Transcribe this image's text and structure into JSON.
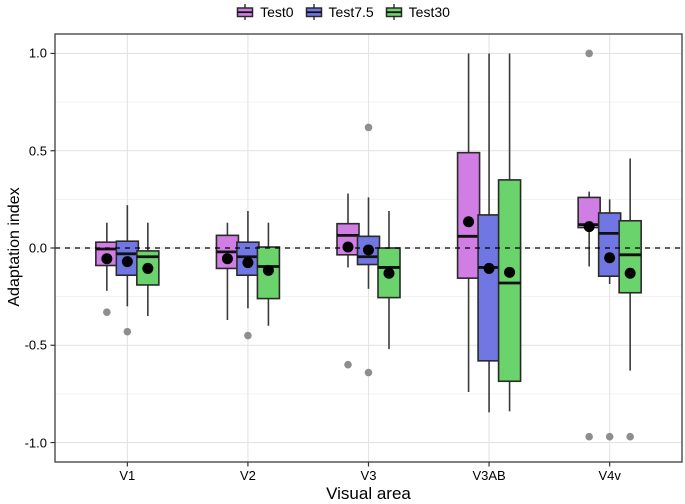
{
  "legend": {
    "entries": [
      "Test0",
      "Test7.5",
      "Test30"
    ]
  },
  "chart_data": {
    "type": "boxplot",
    "title": "",
    "xlabel": "Visual area",
    "ylabel": "Adaptation index",
    "categories": [
      "V1",
      "V2",
      "V3",
      "V3AB",
      "V4v"
    ],
    "y_ticks": [
      1.0,
      0.5,
      0.0,
      -0.5,
      -1.0
    ],
    "y_tick_labels": [
      "1.0",
      "0.5",
      "0.0",
      "-0.5",
      "-1.0"
    ],
    "y_minor_ticks": [
      0.75,
      0.25,
      -0.25,
      -0.75
    ],
    "ylim": [
      -1.1,
      1.1
    ],
    "reference_line": 0.0,
    "legend_position": "top-center",
    "grid": true,
    "colors": {
      "mean_point": "#000000",
      "outlier_point": "#8e8e8e",
      "box_stroke": "#2a2a2a",
      "whisker_stroke": "#3a3a3a",
      "grid_major": "#e4e4e4",
      "grid_minor": "#f0f0f0",
      "panel_border": "#3c3c3c",
      "reference_line": "#000000"
    },
    "series": [
      {
        "name": "Test0",
        "color": "#d07ee3",
        "boxes": [
          {
            "category": "V1",
            "whisker_low": -0.22,
            "q1": -0.09,
            "median": -0.005,
            "q3": 0.03,
            "whisker_high": 0.13,
            "mean": -0.055,
            "outliers": [
              -0.33
            ]
          },
          {
            "category": "V2",
            "whisker_low": -0.37,
            "q1": -0.105,
            "median": -0.02,
            "q3": 0.065,
            "whisker_high": 0.13,
            "mean": -0.055,
            "outliers": []
          },
          {
            "category": "V3",
            "whisker_low": -0.1,
            "q1": -0.035,
            "median": 0.065,
            "q3": 0.125,
            "whisker_high": 0.28,
            "mean": 0.005,
            "outliers": [
              -0.6
            ]
          },
          {
            "category": "V3AB",
            "whisker_low": -0.74,
            "q1": -0.155,
            "median": 0.06,
            "q3": 0.49,
            "whisker_high": 1.0,
            "mean": 0.135,
            "outliers": []
          },
          {
            "category": "V4v",
            "whisker_low": -0.095,
            "q1": 0.105,
            "median": 0.12,
            "q3": 0.26,
            "whisker_high": 0.29,
            "mean": 0.11,
            "outliers": [
              1.0,
              -0.97
            ]
          }
        ]
      },
      {
        "name": "Test7.5",
        "color": "#7077e3",
        "boxes": [
          {
            "category": "V1",
            "whisker_low": -0.3,
            "q1": -0.14,
            "median": -0.03,
            "q3": 0.035,
            "whisker_high": 0.22,
            "mean": -0.07,
            "outliers": [
              -0.43
            ]
          },
          {
            "category": "V2",
            "whisker_low": -0.31,
            "q1": -0.14,
            "median": -0.045,
            "q3": 0.03,
            "whisker_high": 0.19,
            "mean": -0.075,
            "outliers": [
              -0.45
            ]
          },
          {
            "category": "V3",
            "whisker_low": -0.21,
            "q1": -0.085,
            "median": -0.045,
            "q3": 0.06,
            "whisker_high": 0.26,
            "mean": -0.01,
            "outliers": [
              0.62,
              -0.64
            ]
          },
          {
            "category": "V3AB",
            "whisker_low": -0.845,
            "q1": -0.58,
            "median": -0.1,
            "q3": 0.17,
            "whisker_high": 1.0,
            "mean": -0.105,
            "outliers": []
          },
          {
            "category": "V4v",
            "whisker_low": -0.185,
            "q1": -0.145,
            "median": 0.075,
            "q3": 0.18,
            "whisker_high": 0.25,
            "mean": -0.05,
            "outliers": [
              -0.97
            ]
          }
        ]
      },
      {
        "name": "Test30",
        "color": "#6bd36b",
        "boxes": [
          {
            "category": "V1",
            "whisker_low": -0.35,
            "q1": -0.19,
            "median": -0.045,
            "q3": -0.015,
            "whisker_high": 0.13,
            "mean": -0.105,
            "outliers": []
          },
          {
            "category": "V2",
            "whisker_low": -0.4,
            "q1": -0.26,
            "median": -0.095,
            "q3": 0.005,
            "whisker_high": 0.13,
            "mean": -0.115,
            "outliers": []
          },
          {
            "category": "V3",
            "whisker_low": -0.52,
            "q1": -0.255,
            "median": -0.1,
            "q3": 0.0,
            "whisker_high": 0.19,
            "mean": -0.13,
            "outliers": []
          },
          {
            "category": "V3AB",
            "whisker_low": -0.84,
            "q1": -0.685,
            "median": -0.18,
            "q3": 0.35,
            "whisker_high": 1.0,
            "mean": -0.125,
            "outliers": []
          },
          {
            "category": "V4v",
            "whisker_low": -0.63,
            "q1": -0.23,
            "median": -0.035,
            "q3": 0.14,
            "whisker_high": 0.46,
            "mean": -0.13,
            "outliers": [
              -0.97
            ]
          }
        ]
      }
    ]
  }
}
